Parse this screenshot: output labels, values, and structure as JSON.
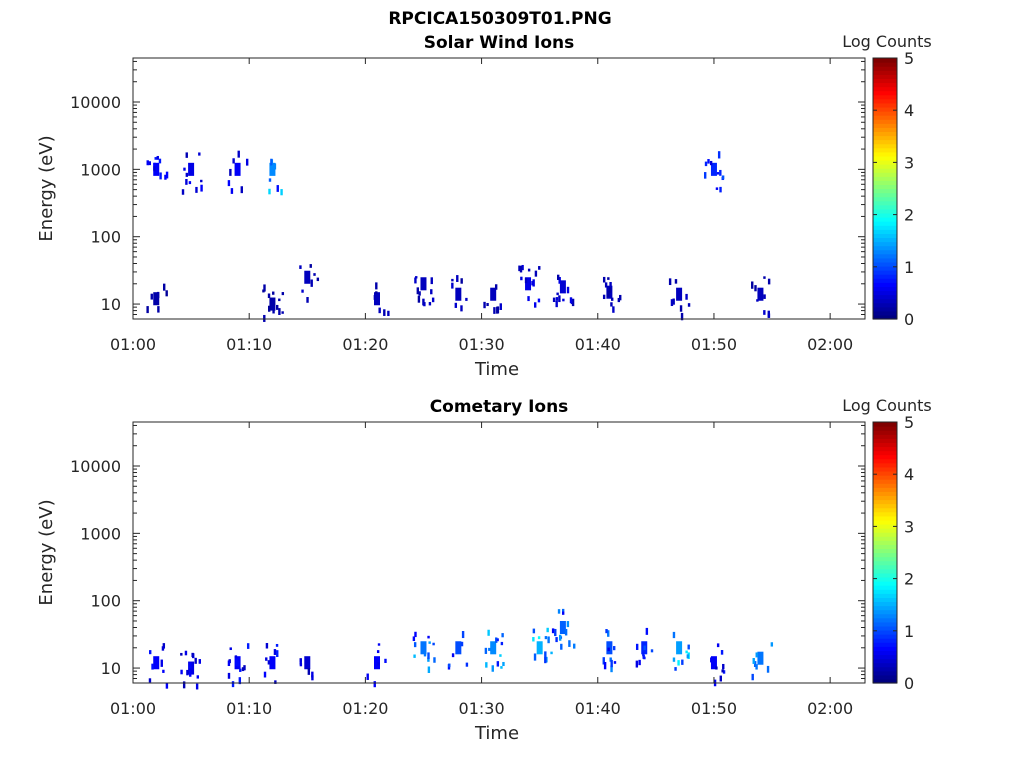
{
  "figure": {
    "title": "RPCICA150309T01.PNG"
  },
  "colors": {
    "colormap": "jet",
    "background": "#ffffff",
    "axis": "#262626"
  },
  "chart_data": [
    {
      "type": "heatmap",
      "title": "Solar Wind Ions",
      "xlabel": "Time",
      "ylabel": "Energy (eV)",
      "yscale": "log",
      "xticks": [
        "01:00",
        "01:10",
        "01:20",
        "01:30",
        "01:40",
        "01:50",
        "02:00"
      ],
      "xlim": [
        "01:00",
        "02:03"
      ],
      "yticks": [
        "10",
        "100",
        "1000",
        "10000"
      ],
      "ylim": [
        6,
        45000
      ],
      "colorbar": {
        "label": "Log Counts",
        "range": [
          0,
          5
        ],
        "ticks": [
          "0",
          "1",
          "2",
          "3",
          "4",
          "5"
        ]
      },
      "grid": false,
      "blocks": [
        {
          "time": "01:02",
          "energy": 12,
          "log_counts": 0.2
        },
        {
          "time": "01:02",
          "energy": 1000,
          "log_counts": 0.6
        },
        {
          "time": "01:05",
          "energy": 1000,
          "log_counts": 0.5
        },
        {
          "time": "01:09",
          "energy": 1000,
          "log_counts": 0.6
        },
        {
          "time": "01:12",
          "energy": 1000,
          "log_counts": 1.3
        },
        {
          "time": "01:12",
          "energy": 10,
          "log_counts": 0.2
        },
        {
          "time": "01:15",
          "energy": 25,
          "log_counts": 0.3
        },
        {
          "time": "01:21",
          "energy": 12,
          "log_counts": 0.3
        },
        {
          "time": "01:25",
          "energy": 20,
          "log_counts": 0.3
        },
        {
          "time": "01:28",
          "energy": 14,
          "log_counts": 0.3
        },
        {
          "time": "01:31",
          "energy": 14,
          "log_counts": 0.3
        },
        {
          "time": "01:34",
          "energy": 20,
          "log_counts": 0.5
        },
        {
          "time": "01:37",
          "energy": 18,
          "log_counts": 0.4
        },
        {
          "time": "01:41",
          "energy": 15,
          "log_counts": 0.3
        },
        {
          "time": "01:47",
          "energy": 14,
          "log_counts": 0.3
        },
        {
          "time": "01:50",
          "energy": 1000,
          "log_counts": 0.8
        },
        {
          "time": "01:54",
          "energy": 14,
          "log_counts": 0.3
        }
      ]
    },
    {
      "type": "heatmap",
      "title": "Cometary Ions",
      "xlabel": "Time",
      "ylabel": "Energy (eV)",
      "yscale": "log",
      "xticks": [
        "01:00",
        "01:10",
        "01:20",
        "01:30",
        "01:40",
        "01:50",
        "02:00"
      ],
      "xlim": [
        "01:00",
        "02:03"
      ],
      "yticks": [
        "10",
        "100",
        "1000",
        "10000"
      ],
      "ylim": [
        6,
        45000
      ],
      "colorbar": {
        "label": "Log Counts",
        "range": [
          0,
          5
        ],
        "ticks": [
          "0",
          "1",
          "2",
          "3",
          "4",
          "5"
        ]
      },
      "grid": false,
      "blocks": [
        {
          "time": "01:02",
          "energy": 12,
          "log_counts": 0.6
        },
        {
          "time": "01:05",
          "energy": 10,
          "log_counts": 0.5
        },
        {
          "time": "01:09",
          "energy": 12,
          "log_counts": 0.6
        },
        {
          "time": "01:12",
          "energy": 12,
          "log_counts": 0.6
        },
        {
          "time": "01:15",
          "energy": 12,
          "log_counts": 0.4
        },
        {
          "time": "01:21",
          "energy": 12,
          "log_counts": 0.6
        },
        {
          "time": "01:25",
          "energy": 20,
          "log_counts": 1.2
        },
        {
          "time": "01:28",
          "energy": 20,
          "log_counts": 1.0
        },
        {
          "time": "01:31",
          "energy": 20,
          "log_counts": 1.3
        },
        {
          "time": "01:35",
          "energy": 20,
          "log_counts": 1.5
        },
        {
          "time": "01:37",
          "energy": 40,
          "log_counts": 1.1
        },
        {
          "time": "01:41",
          "energy": 20,
          "log_counts": 1.0
        },
        {
          "time": "01:44",
          "energy": 20,
          "log_counts": 0.8
        },
        {
          "time": "01:47",
          "energy": 20,
          "log_counts": 1.4
        },
        {
          "time": "01:50",
          "energy": 12,
          "log_counts": 0.6
        },
        {
          "time": "01:54",
          "energy": 14,
          "log_counts": 1.2
        }
      ]
    }
  ]
}
